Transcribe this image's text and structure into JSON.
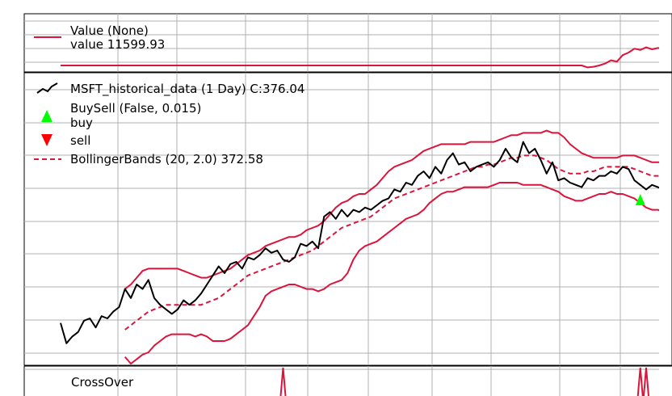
{
  "colors": {
    "value_line": "#dc143c",
    "price_line": "#000000",
    "bollinger": "#dc143c",
    "buy_marker": "#00ff00",
    "sell_marker": "#ff0000",
    "grid": "#b0b0b0",
    "crossover": "#dc143c"
  },
  "chart_data": [
    {
      "type": "line",
      "panel": "value",
      "legend": [
        {
          "name": "Value (None)",
          "detail": "value 11599.93",
          "icon": "line-icon"
        }
      ],
      "grid": true,
      "x": [
        0,
        10,
        20,
        30,
        40,
        50,
        60,
        70,
        80,
        89,
        90,
        91,
        92,
        93,
        94,
        95,
        96,
        97,
        98,
        99,
        100,
        101,
        102,
        103
      ],
      "series": [
        {
          "name": "Value (None)",
          "values": [
            0,
            0,
            0,
            0,
            0,
            0,
            0,
            0,
            0,
            0,
            -0.03,
            -0.02,
            0,
            0.03,
            0.08,
            0.06,
            0.16,
            0.2,
            0.26,
            0.24,
            0.28,
            0.25,
            0.27,
            0.26
          ]
        }
      ],
      "ylim": [
        -0.08,
        0.46
      ]
    },
    {
      "type": "line",
      "panel": "price",
      "legend": [
        {
          "name": "MSFT_historical_data (1 Day) C:376.04",
          "icon": "price-line-icon"
        },
        {
          "name": "BuySell (False, 0.015)",
          "detail": "buy",
          "icon": "buy-triangle-icon"
        },
        {
          "name": "sell",
          "icon": "sell-triangle-icon"
        },
        {
          "name": "BollingerBands (20, 2.0) 372.58",
          "icon": "dashed-line-icon"
        }
      ],
      "grid": true,
      "ylim": [
        0,
        100
      ],
      "x": [
        0,
        1,
        2,
        3,
        4,
        5,
        6,
        7,
        8,
        9,
        10,
        11,
        12,
        13,
        14,
        15,
        16,
        17,
        18,
        19,
        20,
        21,
        22,
        23,
        24,
        25,
        26,
        27,
        28,
        29,
        30,
        31,
        32,
        33,
        34,
        35,
        36,
        37,
        38,
        39,
        40,
        41,
        42,
        43,
        44,
        45,
        46,
        47,
        48,
        49,
        50,
        51,
        52,
        53,
        54,
        55,
        56,
        57,
        58,
        59,
        60,
        61,
        62,
        63,
        64,
        65,
        66,
        67,
        68,
        69,
        70,
        71,
        72,
        73,
        74,
        75,
        76,
        77,
        78,
        79,
        80,
        81,
        82,
        83,
        84,
        85,
        86,
        87,
        88,
        89,
        90,
        91,
        92,
        93,
        94,
        95,
        96,
        97,
        98,
        99,
        100,
        101,
        102,
        103
      ],
      "series": [
        {
          "name": "MSFT_historical_data (1 Day)",
          "style": "solid",
          "values": [
            13,
            4,
            7,
            9,
            14,
            15,
            11,
            16,
            15,
            18,
            20,
            28,
            24,
            30,
            28,
            32,
            24,
            21,
            19,
            17,
            19,
            23,
            21,
            23,
            26,
            30,
            34,
            38,
            35,
            39,
            40,
            37,
            42,
            41,
            43,
            46,
            44,
            45,
            41,
            40,
            42,
            48,
            47,
            49,
            46,
            60,
            62,
            59,
            63,
            60,
            63,
            62,
            64,
            63,
            65,
            67,
            68,
            72,
            71,
            75,
            74,
            78,
            80,
            77,
            82,
            79,
            85,
            88,
            83,
            84,
            80,
            82,
            83,
            84,
            82,
            85,
            90,
            86,
            84,
            93,
            88,
            90,
            85,
            79,
            84,
            76,
            77,
            75,
            74,
            73,
            77,
            76,
            78,
            78,
            80,
            79,
            82,
            81,
            76,
            74,
            72,
            74,
            73,
            72
          ]
        },
        {
          "name": "BollingerBands top",
          "style": "solid",
          "values": [
            null,
            null,
            null,
            null,
            null,
            null,
            null,
            null,
            null,
            null,
            null,
            28,
            30,
            33,
            36,
            37,
            37,
            37,
            37,
            37,
            37,
            36,
            35,
            34,
            33,
            33,
            34,
            35,
            36,
            37,
            39,
            41,
            43,
            44,
            45,
            47,
            48,
            49,
            50,
            51,
            51,
            52,
            54,
            55,
            56,
            58,
            61,
            64,
            66,
            67,
            69,
            70,
            70,
            72,
            74,
            77,
            80,
            82,
            83,
            84,
            85,
            87,
            89,
            90,
            91,
            92,
            92,
            92,
            92,
            92,
            93,
            93,
            93,
            93,
            93,
            94,
            95,
            96,
            96,
            97,
            97,
            97,
            97,
            98,
            97,
            97,
            95,
            92,
            90,
            88,
            87,
            86,
            86,
            86,
            86,
            86,
            87,
            87,
            87,
            86,
            85,
            84,
            84,
            84
          ]
        },
        {
          "name": "BollingerBands mid",
          "style": "dashed",
          "values": [
            null,
            null,
            null,
            null,
            null,
            null,
            null,
            null,
            null,
            null,
            null,
            10,
            12,
            14,
            16,
            18,
            19,
            20,
            21,
            21,
            21,
            21,
            21,
            21,
            21,
            22,
            23,
            24,
            26,
            28,
            30,
            32,
            34,
            35,
            36,
            37,
            38,
            39,
            40,
            41,
            42,
            43,
            44,
            45,
            47,
            49,
            51,
            53,
            55,
            56,
            57,
            58,
            59,
            60,
            62,
            64,
            66,
            68,
            69,
            70,
            71,
            72,
            73,
            74,
            75,
            76,
            77,
            78,
            79,
            80,
            81,
            82,
            82,
            83,
            83,
            84,
            85,
            86,
            86,
            87,
            87,
            87,
            86,
            85,
            83,
            81,
            80,
            79,
            79,
            79,
            80,
            80,
            81,
            82,
            82,
            82,
            82,
            82,
            81,
            80,
            79,
            78,
            78,
            78
          ]
        },
        {
          "name": "BollingerBands bot",
          "style": "solid",
          "values": [
            null,
            null,
            null,
            null,
            null,
            null,
            null,
            null,
            null,
            null,
            null,
            -2,
            -5,
            -3,
            -1,
            0,
            3,
            5,
            7,
            8,
            8,
            8,
            8,
            7,
            8,
            7,
            5,
            5,
            5,
            6,
            8,
            10,
            12,
            16,
            20,
            25,
            27,
            28,
            29,
            30,
            30,
            29,
            28,
            28,
            27,
            28,
            30,
            31,
            32,
            35,
            41,
            45,
            47,
            48,
            49,
            51,
            53,
            55,
            57,
            59,
            60,
            61,
            63,
            66,
            68,
            70,
            71,
            71,
            72,
            73,
            73,
            73,
            73,
            73,
            74,
            75,
            75,
            75,
            75,
            74,
            74,
            74,
            74,
            73,
            72,
            71,
            69,
            68,
            67,
            67,
            68,
            69,
            70,
            70,
            71,
            70,
            70,
            69,
            68,
            66,
            64,
            63,
            63,
            62
          ]
        }
      ],
      "buy_points": [
        {
          "x": 99,
          "y": 70
        }
      ],
      "sell_points": []
    },
    {
      "type": "line",
      "panel": "crossover",
      "legend": [
        {
          "name": "CrossOver",
          "icon": "line-icon"
        }
      ],
      "grid": true,
      "x": [
        38,
        99,
        100
      ],
      "series": [
        {
          "name": "CrossOver",
          "values": [
            1,
            1,
            1
          ]
        }
      ]
    }
  ]
}
